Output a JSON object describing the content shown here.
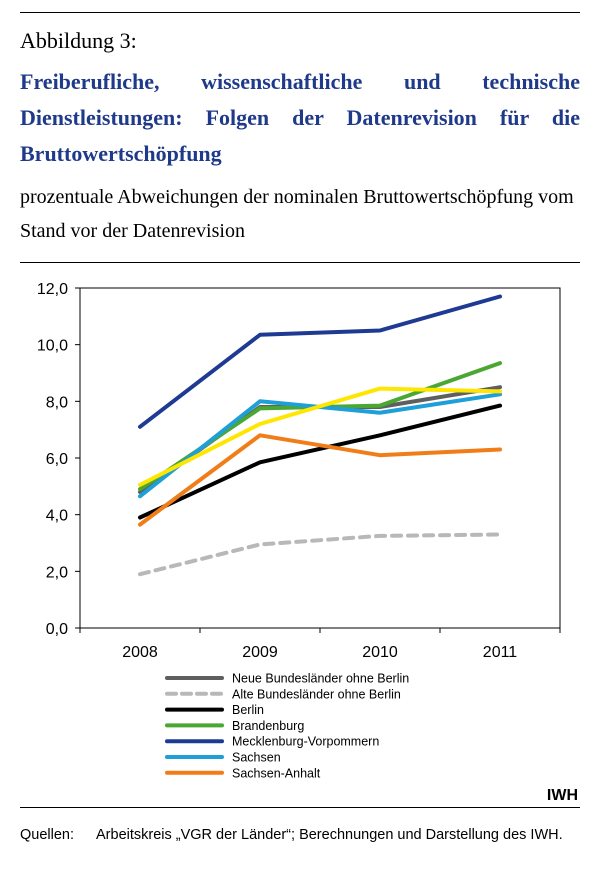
{
  "figure": {
    "label": "Abbildung 3:",
    "title": "Freiberufliche, wissenschaftliche und technische Dienstleistungen: Folgen der Datenrevision für die Bruttowertschöpfung",
    "subtitle": "prozentuale Abweichungen der nominalen Bruttowertschöpfung vom Stand vor der Datenrevision",
    "brand": "IWH",
    "source_label": "Quellen:",
    "source_text": "Arbeitskreis „VGR der Länder“; Berechnungen und Darstellung des IWH."
  },
  "chart_data": {
    "type": "line",
    "x": [
      "2008",
      "2009",
      "2010",
      "2011"
    ],
    "ylim": [
      0,
      12
    ],
    "yticks": [
      "0,0",
      "2,0",
      "4,0",
      "6,0",
      "8,0",
      "10,0",
      "12,0"
    ],
    "grid": false,
    "legend_position": "bottom",
    "series": [
      {
        "name": "Neue Bundesländer ohne Berlin",
        "color": "#5f5f5f",
        "dash": false,
        "values": [
          4.8,
          7.8,
          7.8,
          8.5
        ]
      },
      {
        "name": "Alte Bundesländer ohne Berlin",
        "color": "#b8b8b8",
        "dash": true,
        "values": [
          1.9,
          2.95,
          3.25,
          3.3
        ]
      },
      {
        "name": "Berlin",
        "color": "#000000",
        "dash": false,
        "values": [
          3.9,
          5.85,
          6.8,
          7.85
        ]
      },
      {
        "name": "Brandenburg",
        "color": "#4aa832",
        "dash": false,
        "values": [
          4.9,
          7.75,
          7.85,
          9.35
        ]
      },
      {
        "name": "Mecklenburg-Vorpommern",
        "color": "#1f3a93",
        "dash": false,
        "values": [
          7.1,
          10.35,
          10.5,
          11.7
        ]
      },
      {
        "name": "Sachsen",
        "color": "#1e9fd8",
        "dash": false,
        "values": [
          4.65,
          8.0,
          7.6,
          8.25
        ]
      },
      {
        "name": "Sachsen-Anhalt",
        "color": "#f07d17",
        "dash": false,
        "values": [
          3.65,
          6.8,
          6.1,
          6.3
        ]
      },
      {
        "name": "",
        "color": "#ffe600",
        "dash": false,
        "values": [
          5.05,
          7.2,
          8.45,
          8.35
        ]
      }
    ]
  }
}
